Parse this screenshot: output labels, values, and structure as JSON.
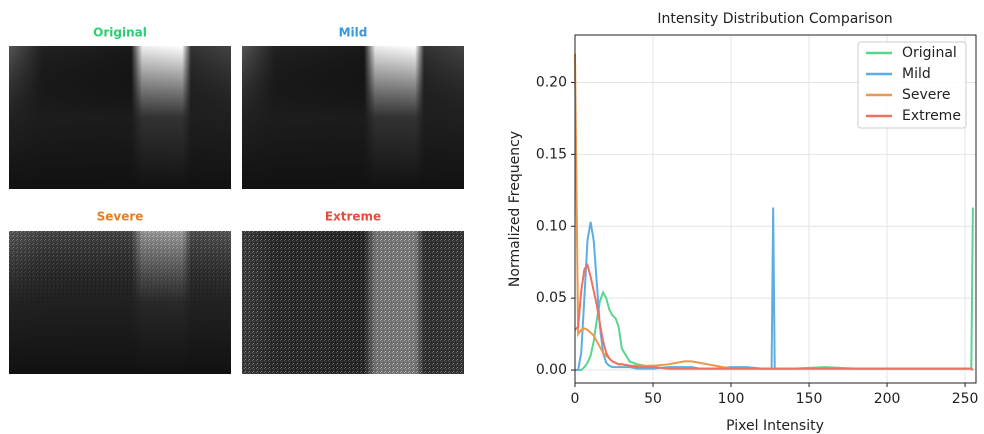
{
  "panels": [
    {
      "title": "Original",
      "color": "#2ecc71"
    },
    {
      "title": "Mild",
      "color": "#3498db"
    },
    {
      "title": "Severe",
      "color": "#e67e22"
    },
    {
      "title": "Extreme",
      "color": "#e74c3c"
    }
  ],
  "chart_data": {
    "type": "line",
    "title": "Intensity Distribution Comparison",
    "x_label": "Pixel Intensity",
    "y_label": "Normalized Frequency",
    "x": [
      0,
      2,
      4,
      6,
      8,
      10,
      12,
      14,
      16,
      18,
      20,
      22,
      24,
      26,
      28,
      30,
      35,
      40,
      50,
      60,
      70,
      75,
      80,
      90,
      100,
      110,
      120,
      126,
      127,
      128,
      140,
      160,
      180,
      200,
      220,
      240,
      254,
      255
    ],
    "series": [
      {
        "name": "Original",
        "color": "#58d68d",
        "values": [
          0,
          0,
          0,
          0.002,
          0.005,
          0.01,
          0.02,
          0.035,
          0.048,
          0.054,
          0.05,
          0.042,
          0.038,
          0.036,
          0.03,
          0.015,
          0.006,
          0.004,
          0.002,
          0.001,
          0.001,
          0.001,
          0.001,
          0.001,
          0.001,
          0.001,
          0.001,
          0.001,
          0.001,
          0.001,
          0.001,
          0.002,
          0.001,
          0.001,
          0.001,
          0.001,
          0.001,
          0.113
        ]
      },
      {
        "name": "Mild",
        "color": "#5dade2",
        "values": [
          0,
          0,
          0.012,
          0.05,
          0.09,
          0.103,
          0.09,
          0.06,
          0.03,
          0.012,
          0.005,
          0.003,
          0.002,
          0.002,
          0.002,
          0.002,
          0.002,
          0.001,
          0.001,
          0.002,
          0.002,
          0.002,
          0.001,
          0.001,
          0.002,
          0.002,
          0.001,
          0.001,
          0.113,
          0.001,
          0.001,
          0.001,
          0.001,
          0.001,
          0.001,
          0.001,
          0.001,
          0
        ]
      },
      {
        "name": "Severe",
        "color": "#eb984e",
        "values": [
          0.22,
          0.025,
          0.028,
          0.029,
          0.028,
          0.026,
          0.024,
          0.02,
          0.016,
          0.012,
          0.01,
          0.008,
          0.006,
          0.005,
          0.004,
          0.004,
          0.003,
          0.003,
          0.003,
          0.004,
          0.006,
          0.006,
          0.005,
          0.003,
          0.001,
          0.001,
          0.001,
          0.001,
          0.001,
          0.001,
          0.001,
          0.001,
          0.001,
          0.001,
          0.001,
          0.001,
          0.001,
          0
        ]
      },
      {
        "name": "Extreme",
        "color": "#ec7063",
        "values": [
          0.028,
          0.03,
          0.055,
          0.07,
          0.073,
          0.065,
          0.055,
          0.045,
          0.032,
          0.02,
          0.012,
          0.008,
          0.006,
          0.005,
          0.004,
          0.004,
          0.003,
          0.002,
          0.002,
          0.001,
          0.001,
          0.001,
          0.001,
          0.001,
          0.001,
          0.001,
          0.001,
          0.001,
          0.001,
          0.001,
          0.001,
          0.001,
          0.001,
          0.001,
          0.001,
          0.001,
          0.001,
          0
        ]
      }
    ],
    "xlim": [
      0,
      257
    ],
    "ylim": [
      -0.009,
      0.233
    ],
    "xticks": [
      0,
      50,
      100,
      150,
      200,
      250
    ],
    "yticks": [
      {
        "value": 0,
        "label": "0.00"
      },
      {
        "value": 0.05,
        "label": "0.05"
      },
      {
        "value": 0.1,
        "label": "0.10"
      },
      {
        "value": 0.15,
        "label": "0.15"
      },
      {
        "value": 0.2,
        "label": "0.20"
      }
    ],
    "grid": true,
    "legend": "upper right"
  }
}
